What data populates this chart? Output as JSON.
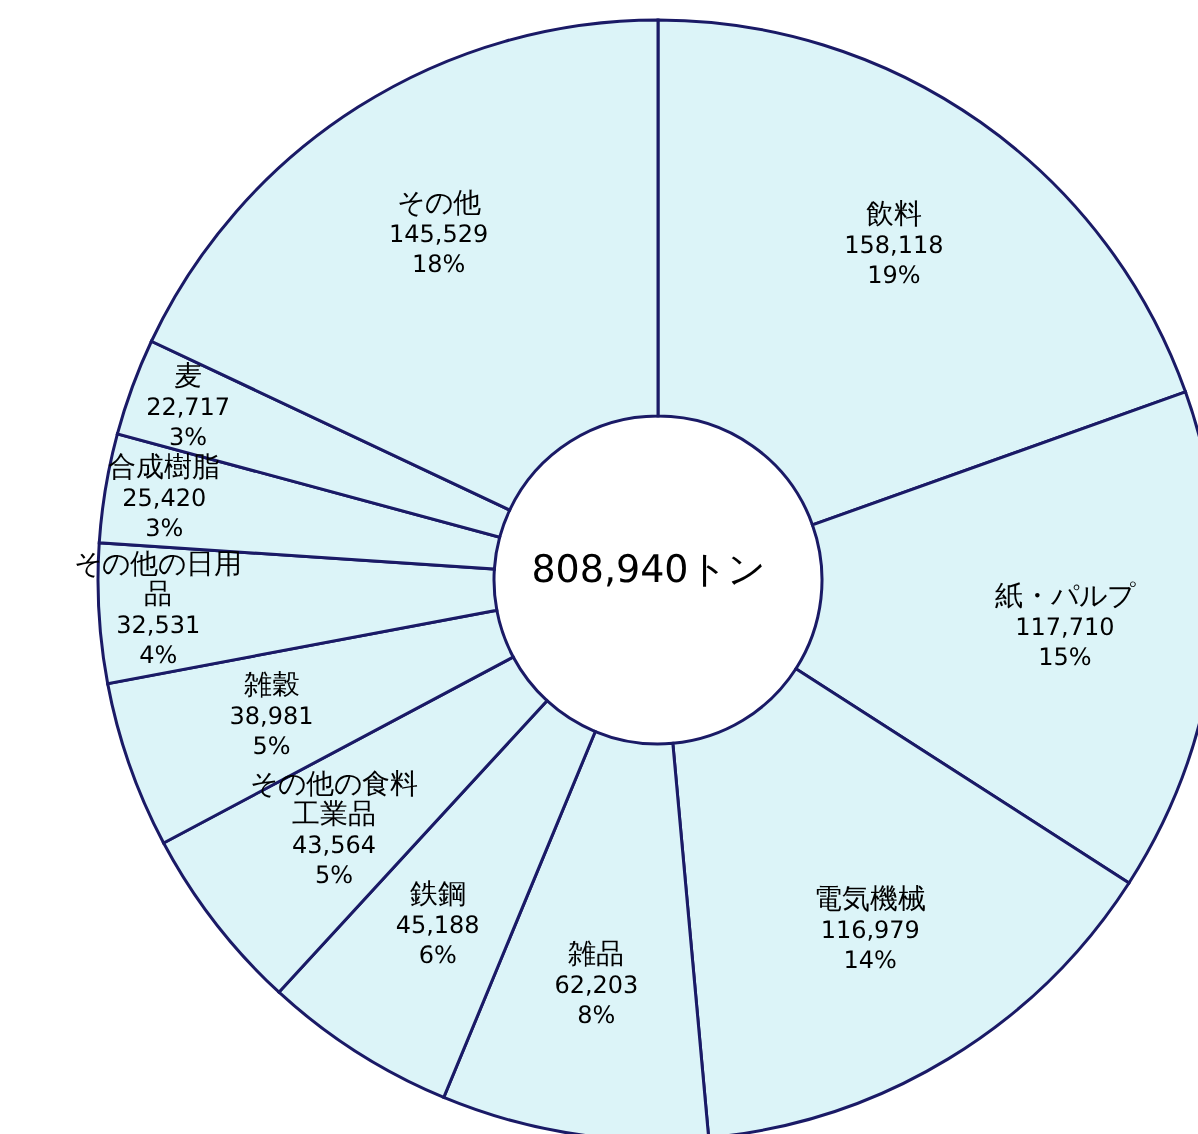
{
  "chart_data": {
    "type": "donut",
    "title": "808,940トン",
    "categories": [
      "飲料",
      "紙・パルプ",
      "電気機械",
      "雑品",
      "鉄鋼",
      "その他の食料工業品",
      "雑穀",
      "その他の日用品",
      "合成樹脂",
      "麦",
      "その他"
    ],
    "values": [
      158118,
      117710,
      116979,
      62203,
      45188,
      43564,
      38981,
      32531,
      25420,
      22717,
      145529
    ],
    "value_labels": [
      "158,118\n19%",
      "117,710\n15%",
      "116,979\n14%",
      "62,203\n8%",
      "45,188\n6%",
      "43,564\n5%",
      "38,981\n5%",
      "32,531\n4%",
      "25,420\n3%",
      "22,717\n3%",
      "145,529\n18%"
    ],
    "colors": [
      "#dcf4f8",
      "#dcf4f8",
      "#dcf4f8",
      "#dcf4f8",
      "#dcf4f8",
      "#dcf4f8",
      "#dcf4f8",
      "#dcf4f8",
      "#dcf4f8",
      "#dcf4f8",
      "#dcf4f8"
    ]
  }
}
